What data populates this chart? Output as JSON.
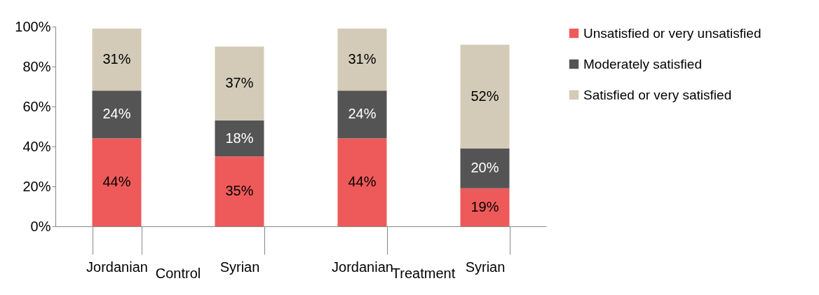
{
  "chart_data": {
    "type": "bar",
    "stacked": true,
    "categories": [
      "Jordanian",
      "Syrian",
      "Jordanian",
      "Syrian"
    ],
    "annotations": [
      "Control",
      "Treatment"
    ],
    "series": [
      {
        "name": "Unsatisfied or very unsatisfied",
        "color": "#ee5a5a",
        "values": [
          44,
          35,
          44,
          19
        ],
        "value_labels": [
          "44%",
          "35%",
          "44%",
          "19%"
        ]
      },
      {
        "name": "Moderately satisfied",
        "color": "#545454",
        "values": [
          24,
          18,
          24,
          20
        ],
        "value_labels": [
          "24%",
          "18%",
          "24%",
          "20%"
        ]
      },
      {
        "name": "Satisfied or very satisfied",
        "color": "#d3cbb8",
        "values": [
          31,
          37,
          31,
          52
        ],
        "value_labels": [
          "31%",
          "37%",
          "31%",
          "52%"
        ]
      }
    ],
    "ylim": [
      0,
      100
    ],
    "yticks": [
      {
        "value": 0,
        "label": "0%"
      },
      {
        "value": 20,
        "label": "20%"
      },
      {
        "value": 40,
        "label": "40%"
      },
      {
        "value": 60,
        "label": "60%"
      },
      {
        "value": 80,
        "label": "80%"
      },
      {
        "value": 100,
        "label": "100%"
      }
    ],
    "grid": false,
    "legend": "right"
  }
}
